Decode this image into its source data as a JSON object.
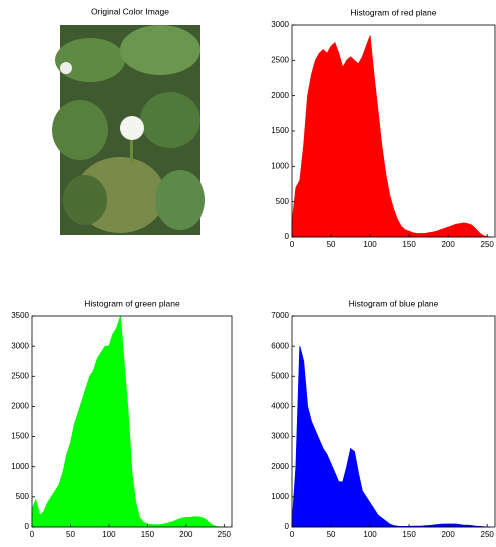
{
  "image": {
    "title": "Original Color Image"
  },
  "chart_data": [
    {
      "type": "area",
      "title": "Histogram of red plane",
      "color": "#ff0000",
      "x": [
        0,
        5,
        10,
        15,
        20,
        25,
        30,
        35,
        40,
        45,
        50,
        55,
        60,
        65,
        70,
        75,
        80,
        85,
        90,
        95,
        100,
        105,
        110,
        115,
        120,
        125,
        130,
        135,
        140,
        145,
        150,
        155,
        160,
        165,
        170,
        175,
        180,
        185,
        190,
        195,
        200,
        205,
        210,
        215,
        220,
        225,
        230,
        235,
        240,
        245,
        250,
        255
      ],
      "values": [
        200,
        700,
        800,
        1300,
        2000,
        2300,
        2500,
        2600,
        2650,
        2600,
        2700,
        2750,
        2600,
        2400,
        2500,
        2550,
        2500,
        2450,
        2550,
        2700,
        2850,
        2300,
        1800,
        1300,
        900,
        600,
        400,
        250,
        150,
        100,
        80,
        60,
        50,
        50,
        50,
        60,
        70,
        80,
        100,
        120,
        140,
        160,
        180,
        190,
        200,
        190,
        170,
        120,
        60,
        20,
        5,
        0
      ],
      "xlim": [
        0,
        260
      ],
      "xticks": [
        0,
        50,
        100,
        150,
        200,
        250
      ],
      "ylim": [
        0,
        3000
      ],
      "yticks": [
        0,
        500,
        1000,
        1500,
        2000,
        2500,
        3000
      ]
    },
    {
      "type": "area",
      "title": "Histogram of green plane",
      "color": "#00ff00",
      "x": [
        0,
        5,
        10,
        15,
        20,
        25,
        30,
        35,
        40,
        45,
        50,
        55,
        60,
        65,
        70,
        75,
        80,
        85,
        90,
        95,
        100,
        105,
        110,
        115,
        120,
        125,
        130,
        135,
        140,
        145,
        150,
        155,
        160,
        165,
        170,
        175,
        180,
        185,
        190,
        195,
        200,
        205,
        210,
        215,
        220,
        225,
        230,
        235,
        240,
        245,
        250,
        255
      ],
      "values": [
        300,
        450,
        200,
        250,
        400,
        500,
        600,
        700,
        900,
        1200,
        1400,
        1700,
        1900,
        2100,
        2300,
        2500,
        2600,
        2800,
        2900,
        3000,
        3000,
        3200,
        3300,
        3500,
        2700,
        1900,
        900,
        400,
        150,
        80,
        50,
        40,
        40,
        40,
        50,
        60,
        80,
        100,
        130,
        150,
        160,
        160,
        170,
        170,
        160,
        140,
        80,
        30,
        10,
        0,
        0,
        0
      ],
      "xlim": [
        0,
        260
      ],
      "xticks": [
        0,
        50,
        100,
        150,
        200,
        250
      ],
      "ylim": [
        0,
        3500
      ],
      "yticks": [
        0,
        500,
        1000,
        1500,
        2000,
        2500,
        3000,
        3500
      ]
    },
    {
      "type": "area",
      "title": "Histogram of blue plane",
      "color": "#0000ff",
      "x": [
        0,
        5,
        10,
        15,
        20,
        25,
        30,
        35,
        40,
        45,
        50,
        55,
        60,
        65,
        70,
        75,
        80,
        85,
        90,
        95,
        100,
        105,
        110,
        115,
        120,
        125,
        130,
        135,
        140,
        145,
        150,
        155,
        160,
        165,
        170,
        175,
        180,
        185,
        190,
        195,
        200,
        205,
        210,
        215,
        220,
        225,
        230,
        235,
        240,
        245,
        250,
        255
      ],
      "values": [
        100,
        2000,
        6000,
        5500,
        4000,
        3500,
        3200,
        2900,
        2600,
        2400,
        2100,
        1800,
        1500,
        1500,
        2000,
        2600,
        2500,
        1800,
        1200,
        1000,
        800,
        600,
        400,
        300,
        200,
        100,
        50,
        30,
        20,
        20,
        20,
        30,
        30,
        30,
        40,
        50,
        60,
        80,
        90,
        100,
        100,
        100,
        100,
        80,
        60,
        60,
        50,
        30,
        20,
        10,
        0,
        0
      ],
      "xlim": [
        0,
        260
      ],
      "xticks": [
        0,
        50,
        100,
        150,
        200,
        250
      ],
      "ylim": [
        0,
        7000
      ],
      "yticks": [
        0,
        1000,
        2000,
        3000,
        4000,
        5000,
        6000,
        7000
      ]
    }
  ]
}
